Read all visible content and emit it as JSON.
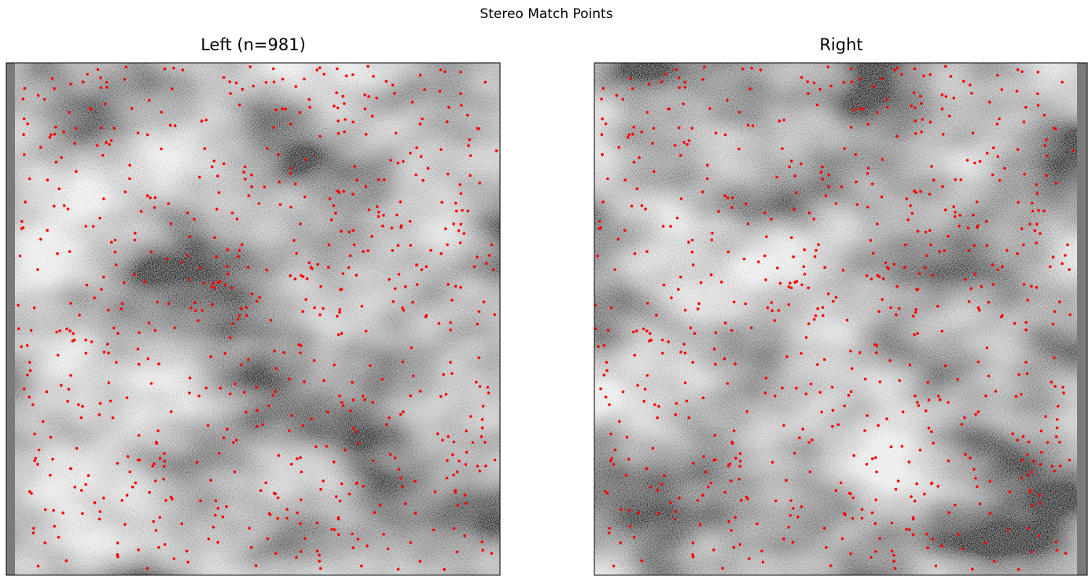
{
  "figure": {
    "title": "Stereo Match Points",
    "panels": [
      {
        "title": "Left (n=981)"
      },
      {
        "title": "Right"
      }
    ]
  }
}
